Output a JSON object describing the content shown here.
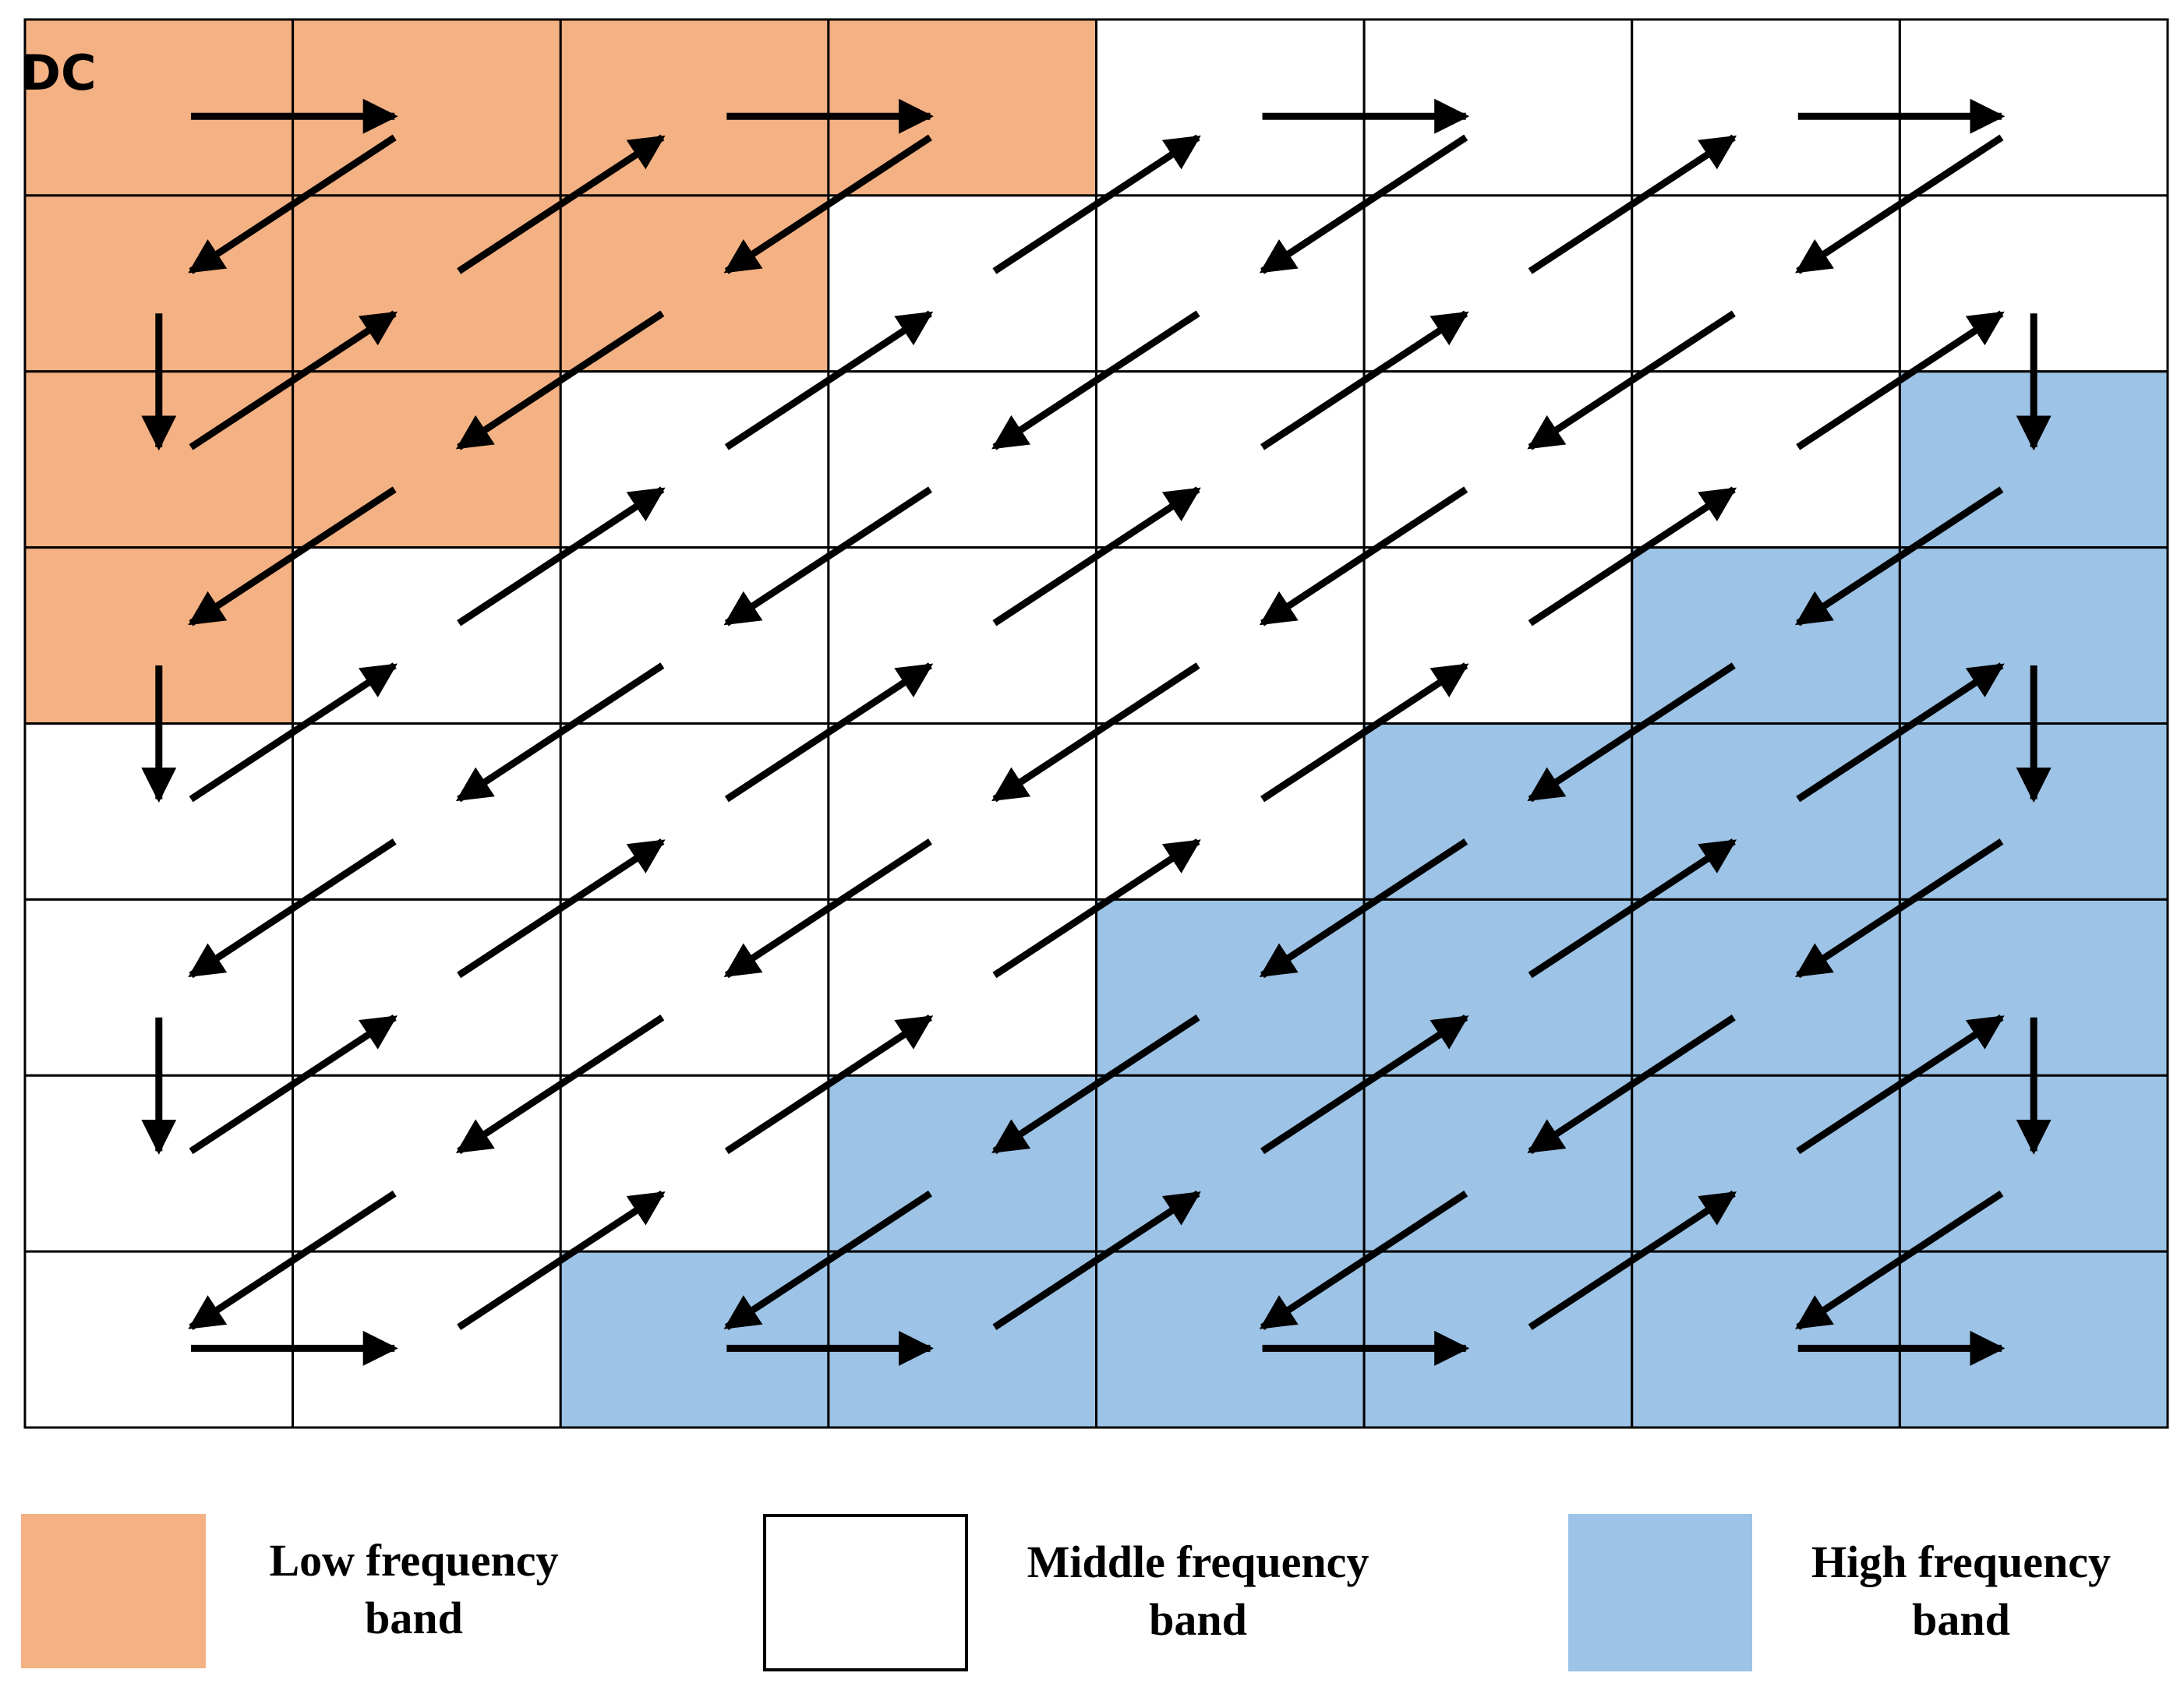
{
  "dc_label": "DC",
  "legend": [
    {
      "line1": "Low frequency",
      "line2": "band"
    },
    {
      "line1": "Middle frequency",
      "line2": "band"
    },
    {
      "line1": "High frequency",
      "line2": "band"
    }
  ]
}
